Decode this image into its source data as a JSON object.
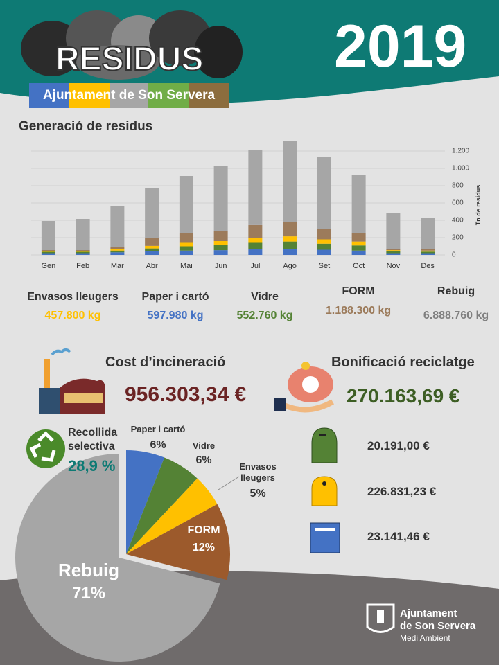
{
  "header": {
    "title": "RESIDUS",
    "subtitle": "Ajuntament de Son Servera",
    "year": "2019"
  },
  "chart_data": [
    {
      "type": "bar",
      "title": "Generació de residus",
      "y_label": "Tn de residus",
      "stacked": true,
      "grid": true,
      "categories": [
        "Gen",
        "Feb",
        "Mar",
        "Abr",
        "Mai",
        "Jun",
        "Jul",
        "Ago",
        "Set",
        "Oct",
        "Nov",
        "Des"
      ],
      "series": [
        {
          "name": "Paper i cartó",
          "color": "#4472c4",
          "values": [
            20,
            20,
            30,
            40,
            50,
            55,
            65,
            70,
            60,
            50,
            20,
            20
          ]
        },
        {
          "name": "Vidre",
          "color": "#548235",
          "values": [
            16,
            16,
            20,
            35,
            50,
            60,
            75,
            85,
            70,
            60,
            20,
            18
          ]
        },
        {
          "name": "Envasos lleugers",
          "color": "#ffc000",
          "values": [
            10,
            10,
            15,
            30,
            40,
            45,
            55,
            60,
            50,
            45,
            15,
            12
          ]
        },
        {
          "name": "FORM",
          "color": "#9c7b5b",
          "values": [
            10,
            10,
            25,
            90,
            110,
            120,
            150,
            165,
            120,
            100,
            15,
            15
          ]
        },
        {
          "name": "Rebuig",
          "color": "#a6a6a6",
          "values": [
            336,
            360,
            470,
            581,
            662,
            744,
            871,
            932,
            828,
            665,
            418,
            367
          ]
        }
      ],
      "ylim": [
        0,
        1300
      ],
      "yticks": [
        0,
        200,
        400,
        600,
        800,
        {
          "value": 1000,
          "label": "1.000"
        },
        {
          "value": 1200,
          "label": "1.200"
        }
      ]
    },
    {
      "type": "pie",
      "categories": [
        "Paper i cartó",
        "Vidre",
        "Envasos lleugers",
        "FORM",
        "Rebuig"
      ],
      "values": [
        6,
        6,
        5,
        12,
        71
      ],
      "value_labels": [
        "6%",
        "6%",
        "5%",
        "12%",
        "71%"
      ],
      "colors": [
        "#4472c4",
        "#548235",
        "#ffc000",
        "#9c5a2c",
        "#a6a6a6"
      ]
    }
  ],
  "totals": [
    "597.980 kg",
    "552.760 kg",
    "457.800 kg",
    "1.188.300 kg",
    "6.888.760 kg"
  ],
  "costs": {
    "incineration_title": "Cost d’incineració",
    "incineration_value": "956.303,34 €",
    "bonus_title": "Bonificació reciclatge",
    "bonus_value": "270.163,69 €",
    "bins": [
      "20.191,00 €",
      "226.831,23 €",
      "23.141,46 €"
    ]
  },
  "selective": {
    "label": "Recollida selectiva",
    "value": "28,9 %"
  },
  "footer": {
    "line1": "Ajuntament",
    "line2": "de Son Servera",
    "line3": "Medi Ambient"
  }
}
